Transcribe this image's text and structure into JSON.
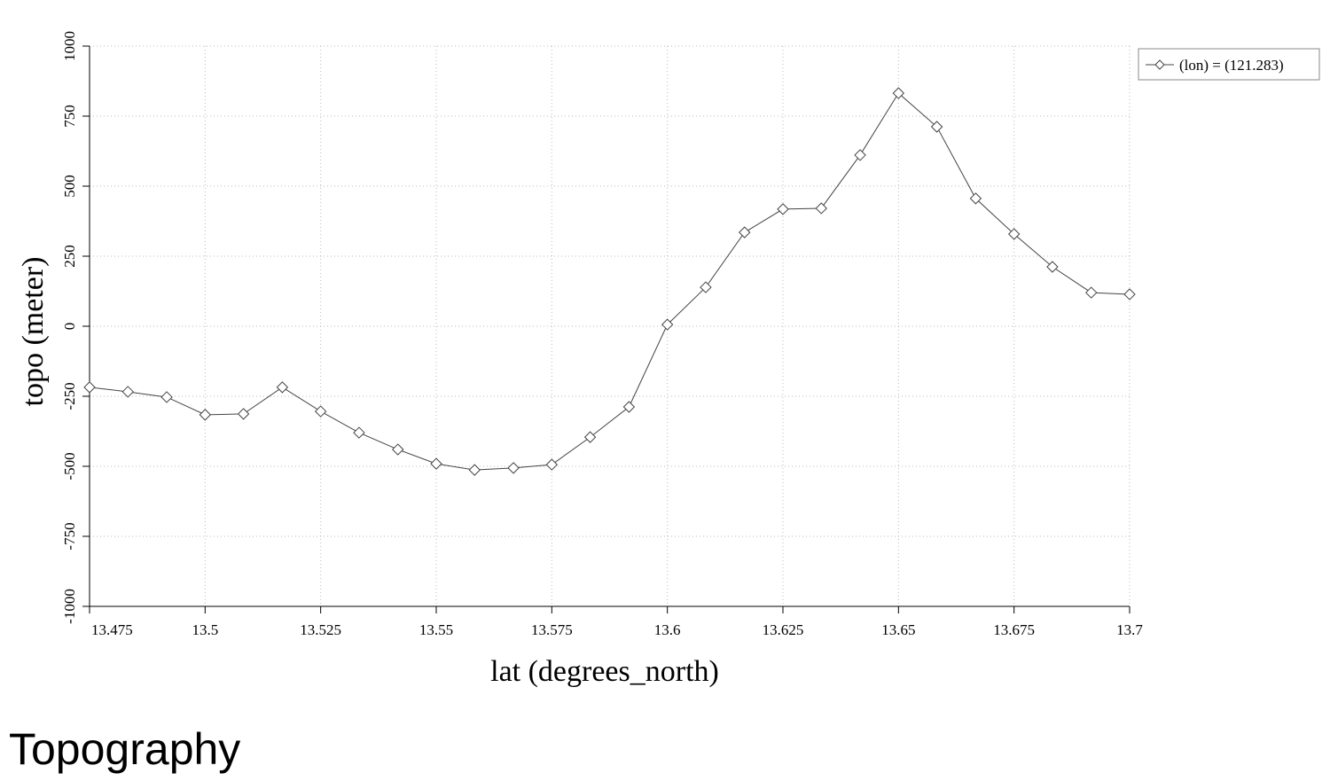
{
  "chart_data": {
    "type": "line",
    "title": "Topography",
    "x_label": "lat (degrees_north)",
    "y_label": "topo (meter)",
    "x": [
      13.475,
      13.4833,
      13.4917,
      13.5,
      13.5083,
      13.5167,
      13.525,
      13.5333,
      13.5417,
      13.55,
      13.5583,
      13.5667,
      13.575,
      13.5833,
      13.5917,
      13.6,
      13.6083,
      13.6167,
      13.625,
      13.6333,
      13.6417,
      13.65,
      13.6583,
      13.6667,
      13.675,
      13.6833,
      13.6917,
      13.7
    ],
    "series": [
      {
        "name": "(lon) = (121.283)",
        "color": "#444444",
        "values": [
          -218,
          -234,
          -253,
          -316,
          -313,
          -218,
          -304,
          -380,
          -440,
          -491,
          -513,
          -506,
          -494,
          -396,
          -288,
          6,
          139,
          335,
          418,
          421,
          611,
          832,
          712,
          456,
          329,
          212,
          120,
          114
        ]
      }
    ],
    "xlim": [
      13.475,
      13.7
    ],
    "xticks": [
      13.475,
      13.5,
      13.525,
      13.55,
      13.575,
      13.6,
      13.625,
      13.65,
      13.675,
      13.7
    ],
    "ylim": [
      -1000,
      1000
    ],
    "yticks": [
      -1000,
      -750,
      -500,
      -250,
      0,
      250,
      500,
      750,
      1000
    ],
    "grid": true,
    "legend": "top-right"
  }
}
